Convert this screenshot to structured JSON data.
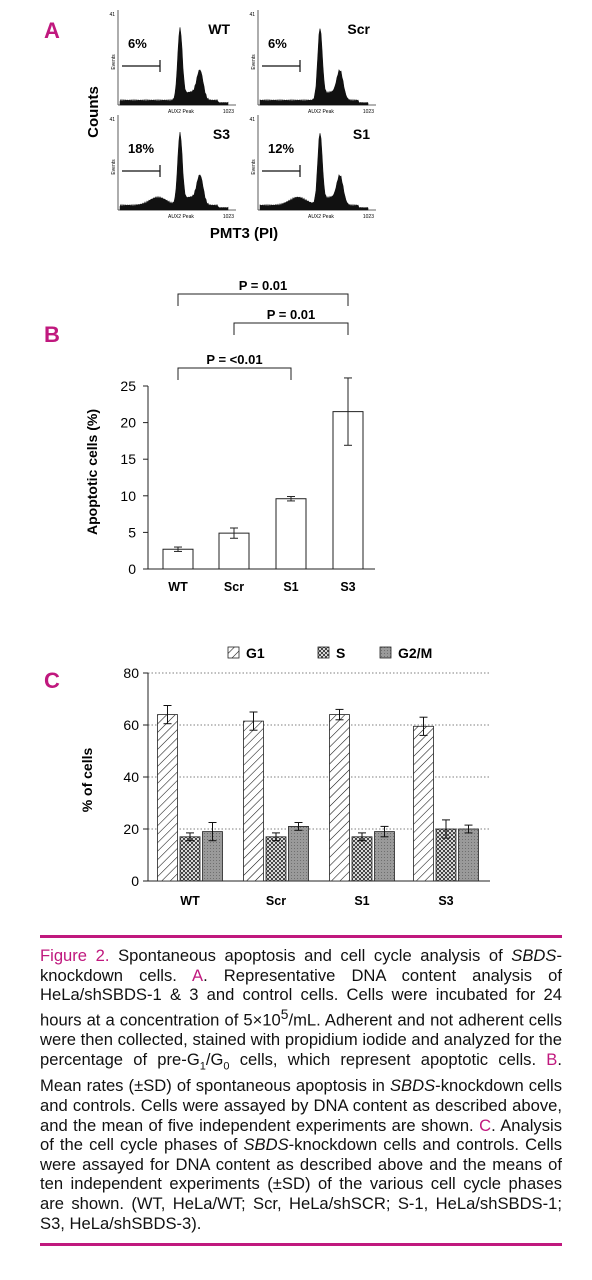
{
  "panel_labels": {
    "a": "A",
    "b": "B",
    "c": "C"
  },
  "panel_a": {
    "y_title": "Counts",
    "x_title": "PMT3 (PI)",
    "histograms": [
      {
        "name": "WT",
        "percent": "6%",
        "x_label": "AUX2 Peak",
        "y_label": "Events",
        "x_tick": "1023",
        "y_tick": "41"
      },
      {
        "name": "Scr",
        "percent": "6%",
        "x_label": "AUX2 Peak",
        "y_label": "Events",
        "x_tick": "1023",
        "y_tick": "41"
      },
      {
        "name": "S3",
        "percent": "18%",
        "x_label": "AUX2 Peak",
        "y_label": "Events",
        "x_tick": "1023",
        "y_tick": "41"
      },
      {
        "name": "S1",
        "percent": "12%",
        "x_label": "AUX2 Peak",
        "y_label": "Events",
        "x_tick": "1023",
        "y_tick": "41"
      }
    ]
  },
  "chart_data": [
    {
      "type": "bar",
      "ylabel": "Apoptotic cells (%)",
      "categories": [
        "WT",
        "Scr",
        "S1",
        "S3"
      ],
      "values": [
        2.7,
        4.9,
        9.6,
        21.5
      ],
      "errors": [
        0.3,
        0.7,
        0.3,
        4.6
      ],
      "ylim": [
        0,
        25
      ],
      "yticks": [
        0,
        5,
        10,
        15,
        20,
        25
      ],
      "grid": false,
      "annotations": [
        {
          "from": "WT",
          "to": "S1",
          "text": "P = <0.01"
        },
        {
          "from": "Scr",
          "to": "S3",
          "text": "P = 0.01"
        },
        {
          "from": "WT",
          "to": "S3",
          "text": "P = 0.01"
        }
      ]
    },
    {
      "type": "bar",
      "ylabel": "% of cells",
      "categories": [
        "WT",
        "Scr",
        "S1",
        "S3"
      ],
      "series": [
        {
          "name": "G1",
          "values": [
            64,
            61.5,
            64,
            59.5
          ],
          "errors": [
            3.5,
            3.5,
            2,
            3.5
          ],
          "pattern": "diagonal-hatch"
        },
        {
          "name": "S",
          "values": [
            17,
            17,
            17,
            20
          ],
          "errors": [
            1.5,
            1.5,
            1.5,
            3.5
          ],
          "pattern": "crosshatch"
        },
        {
          "name": "G2/M",
          "values": [
            19,
            21,
            19,
            20
          ],
          "errors": [
            3.5,
            1.5,
            2,
            1.5
          ],
          "pattern": "gray"
        }
      ],
      "ylim": [
        0,
        80
      ],
      "yticks": [
        0,
        20,
        40,
        60,
        80
      ],
      "grid": true,
      "legend": "top"
    }
  ],
  "caption": {
    "fig": "Figure 2.",
    "p1a": " Spontaneous apoptosis and cell cycle analysis of ",
    "gene": "SBDS",
    "p1b": "-knockdown cells. ",
    "a": "A",
    "p2a": ". Representative DNA content analysis of HeLa/shSBDS-1 & 3 and control cells. Cells were incubated for 24 hours at a concentration of 5×10",
    "exp": "5",
    "p2b": "/mL. Adherent and not adherent cells were then collected, stained with propidium iodide and analyzed for the percentage of pre-G",
    "sub1": "1",
    "slash": "/G",
    "sub0": "0",
    "p2c": " cells, which represent apoptotic cells. ",
    "b": "B",
    "p3a": ". Mean rates (±SD) of spontaneous apoptosis in ",
    "p3b": "-knockdown cells and controls. Cells were assayed by DNA content as described above, and the mean of five independent experiments are shown. ",
    "c": "C",
    "p4a": ". Analysis of the cell cycle phases of ",
    "p4b": "-knockdown cells and controls. Cells were assayed for DNA content as described above and the means of ten independent experiments (±SD) of the various cell cycle phases are shown. (WT, HeLa/WT; Scr, HeLa/shSCR; S-1, HeLa/shSBDS-1; S3, HeLa/shSBDS-3)."
  }
}
